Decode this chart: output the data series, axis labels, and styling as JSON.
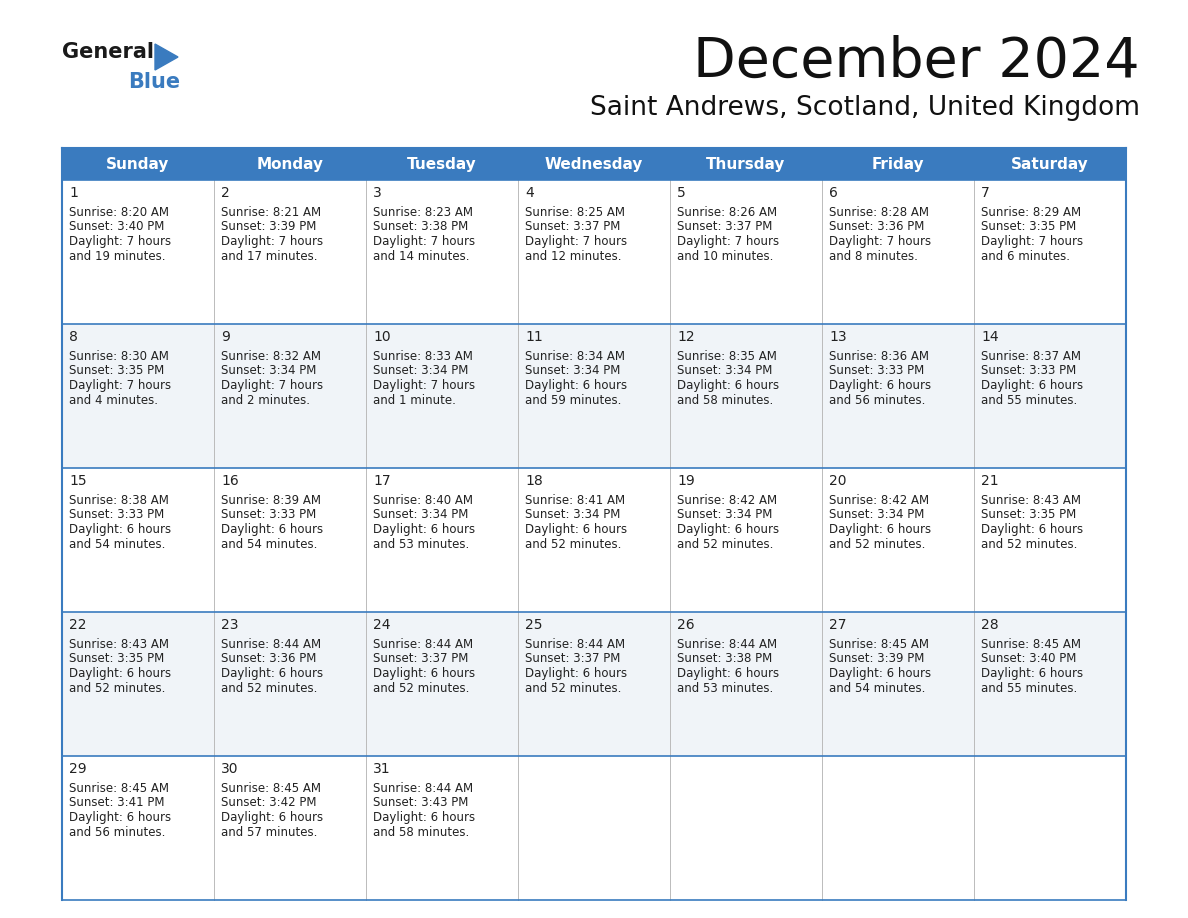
{
  "title": "December 2024",
  "subtitle": "Saint Andrews, Scotland, United Kingdom",
  "header_color": "#3a7bbf",
  "header_text_color": "#ffffff",
  "cell_bg_color1": "#ffffff",
  "cell_bg_color2": "#f0f4f8",
  "border_color": "#3a7bbf",
  "text_color": "#333333",
  "days_of_week": [
    "Sunday",
    "Monday",
    "Tuesday",
    "Wednesday",
    "Thursday",
    "Friday",
    "Saturday"
  ],
  "weeks": [
    [
      {
        "day": 1,
        "sunrise": "8:20 AM",
        "sunset": "3:40 PM",
        "dl1": "7 hours",
        "dl2": "and 19 minutes."
      },
      {
        "day": 2,
        "sunrise": "8:21 AM",
        "sunset": "3:39 PM",
        "dl1": "7 hours",
        "dl2": "and 17 minutes."
      },
      {
        "day": 3,
        "sunrise": "8:23 AM",
        "sunset": "3:38 PM",
        "dl1": "7 hours",
        "dl2": "and 14 minutes."
      },
      {
        "day": 4,
        "sunrise": "8:25 AM",
        "sunset": "3:37 PM",
        "dl1": "7 hours",
        "dl2": "and 12 minutes."
      },
      {
        "day": 5,
        "sunrise": "8:26 AM",
        "sunset": "3:37 PM",
        "dl1": "7 hours",
        "dl2": "and 10 minutes."
      },
      {
        "day": 6,
        "sunrise": "8:28 AM",
        "sunset": "3:36 PM",
        "dl1": "7 hours",
        "dl2": "and 8 minutes."
      },
      {
        "day": 7,
        "sunrise": "8:29 AM",
        "sunset": "3:35 PM",
        "dl1": "7 hours",
        "dl2": "and 6 minutes."
      }
    ],
    [
      {
        "day": 8,
        "sunrise": "8:30 AM",
        "sunset": "3:35 PM",
        "dl1": "7 hours",
        "dl2": "and 4 minutes."
      },
      {
        "day": 9,
        "sunrise": "8:32 AM",
        "sunset": "3:34 PM",
        "dl1": "7 hours",
        "dl2": "and 2 minutes."
      },
      {
        "day": 10,
        "sunrise": "8:33 AM",
        "sunset": "3:34 PM",
        "dl1": "7 hours",
        "dl2": "and 1 minute."
      },
      {
        "day": 11,
        "sunrise": "8:34 AM",
        "sunset": "3:34 PM",
        "dl1": "6 hours",
        "dl2": "and 59 minutes."
      },
      {
        "day": 12,
        "sunrise": "8:35 AM",
        "sunset": "3:34 PM",
        "dl1": "6 hours",
        "dl2": "and 58 minutes."
      },
      {
        "day": 13,
        "sunrise": "8:36 AM",
        "sunset": "3:33 PM",
        "dl1": "6 hours",
        "dl2": "and 56 minutes."
      },
      {
        "day": 14,
        "sunrise": "8:37 AM",
        "sunset": "3:33 PM",
        "dl1": "6 hours",
        "dl2": "and 55 minutes."
      }
    ],
    [
      {
        "day": 15,
        "sunrise": "8:38 AM",
        "sunset": "3:33 PM",
        "dl1": "6 hours",
        "dl2": "and 54 minutes."
      },
      {
        "day": 16,
        "sunrise": "8:39 AM",
        "sunset": "3:33 PM",
        "dl1": "6 hours",
        "dl2": "and 54 minutes."
      },
      {
        "day": 17,
        "sunrise": "8:40 AM",
        "sunset": "3:34 PM",
        "dl1": "6 hours",
        "dl2": "and 53 minutes."
      },
      {
        "day": 18,
        "sunrise": "8:41 AM",
        "sunset": "3:34 PM",
        "dl1": "6 hours",
        "dl2": "and 52 minutes."
      },
      {
        "day": 19,
        "sunrise": "8:42 AM",
        "sunset": "3:34 PM",
        "dl1": "6 hours",
        "dl2": "and 52 minutes."
      },
      {
        "day": 20,
        "sunrise": "8:42 AM",
        "sunset": "3:34 PM",
        "dl1": "6 hours",
        "dl2": "and 52 minutes."
      },
      {
        "day": 21,
        "sunrise": "8:43 AM",
        "sunset": "3:35 PM",
        "dl1": "6 hours",
        "dl2": "and 52 minutes."
      }
    ],
    [
      {
        "day": 22,
        "sunrise": "8:43 AM",
        "sunset": "3:35 PM",
        "dl1": "6 hours",
        "dl2": "and 52 minutes."
      },
      {
        "day": 23,
        "sunrise": "8:44 AM",
        "sunset": "3:36 PM",
        "dl1": "6 hours",
        "dl2": "and 52 minutes."
      },
      {
        "day": 24,
        "sunrise": "8:44 AM",
        "sunset": "3:37 PM",
        "dl1": "6 hours",
        "dl2": "and 52 minutes."
      },
      {
        "day": 25,
        "sunrise": "8:44 AM",
        "sunset": "3:37 PM",
        "dl1": "6 hours",
        "dl2": "and 52 minutes."
      },
      {
        "day": 26,
        "sunrise": "8:44 AM",
        "sunset": "3:38 PM",
        "dl1": "6 hours",
        "dl2": "and 53 minutes."
      },
      {
        "day": 27,
        "sunrise": "8:45 AM",
        "sunset": "3:39 PM",
        "dl1": "6 hours",
        "dl2": "and 54 minutes."
      },
      {
        "day": 28,
        "sunrise": "8:45 AM",
        "sunset": "3:40 PM",
        "dl1": "6 hours",
        "dl2": "and 55 minutes."
      }
    ],
    [
      {
        "day": 29,
        "sunrise": "8:45 AM",
        "sunset": "3:41 PM",
        "dl1": "6 hours",
        "dl2": "and 56 minutes."
      },
      {
        "day": 30,
        "sunrise": "8:45 AM",
        "sunset": "3:42 PM",
        "dl1": "6 hours",
        "dl2": "and 57 minutes."
      },
      {
        "day": 31,
        "sunrise": "8:44 AM",
        "sunset": "3:43 PM",
        "dl1": "6 hours",
        "dl2": "and 58 minutes."
      },
      null,
      null,
      null,
      null
    ]
  ]
}
